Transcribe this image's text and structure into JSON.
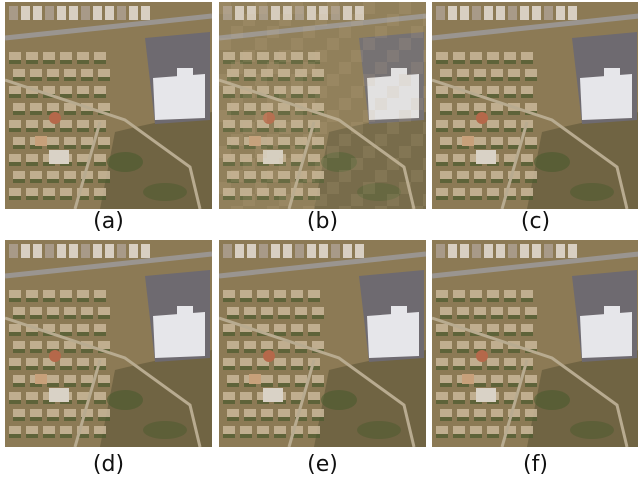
{
  "panels": [
    {
      "label": "(a)",
      "variant": "sharp"
    },
    {
      "label": "(b)",
      "variant": "blocky"
    },
    {
      "label": "(c)",
      "variant": "sharp"
    },
    {
      "label": "(d)",
      "variant": "sharp"
    },
    {
      "label": "(e)",
      "variant": "sharp"
    },
    {
      "label": "(f)",
      "variant": "sharp"
    }
  ],
  "colors": {
    "terrain": "#8c7a55",
    "terrain_dark": "#5a5235",
    "road": "#9a9590",
    "lot": "#6e6a70",
    "roof": "#e6e6ea",
    "roof_red": "#b5684a",
    "houses": "#c9b79a",
    "vegetation": "#4a5a2e"
  }
}
